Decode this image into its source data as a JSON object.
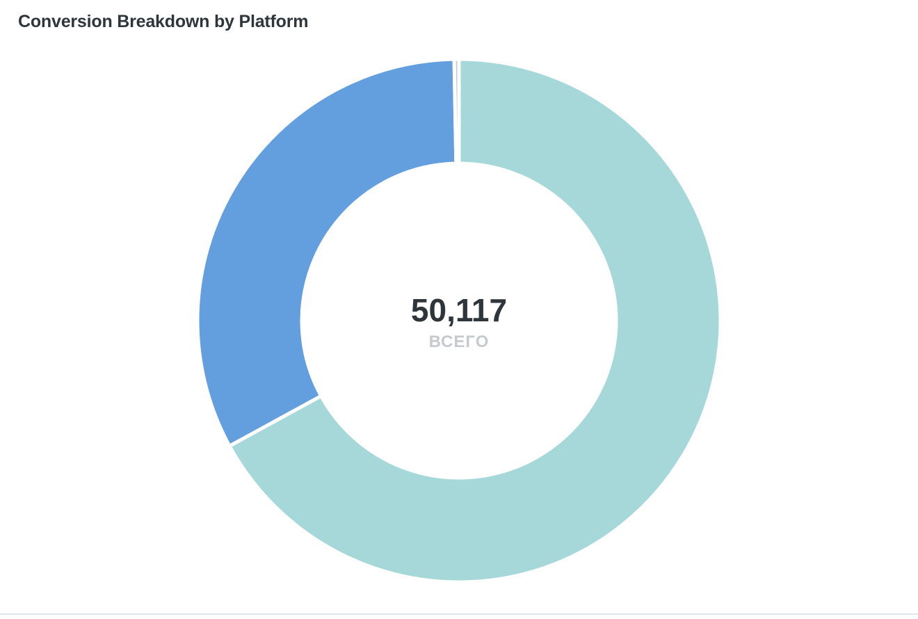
{
  "chart_data": {
    "type": "pie",
    "title": "Conversion Breakdown by Platform",
    "categories": [
      "",
      "",
      ""
    ],
    "values": [
      33600,
      16370,
      147
    ],
    "colors": [
      "#a6d8da",
      "#639fde",
      "#c5cacf"
    ],
    "center": {
      "value": "50,117",
      "label": "ВСЕГО"
    },
    "legend": "none"
  }
}
